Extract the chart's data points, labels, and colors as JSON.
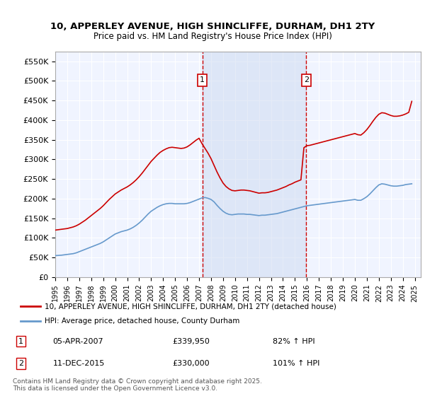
{
  "title_line1": "10, APPERLEY AVENUE, HIGH SHINCLIFFE, DURHAM, DH1 2TY",
  "title_line2": "Price paid vs. HM Land Registry's House Price Index (HPI)",
  "legend_red": "10, APPERLEY AVENUE, HIGH SHINCLIFFE, DURHAM, DH1 2TY (detached house)",
  "legend_blue": "HPI: Average price, detached house, County Durham",
  "annotation1_label": "1",
  "annotation1_date": "05-APR-2007",
  "annotation1_price": "£339,950",
  "annotation1_hpi": "82% ↑ HPI",
  "annotation2_label": "2",
  "annotation2_date": "11-DEC-2015",
  "annotation2_price": "£330,000",
  "annotation2_hpi": "101% ↑ HPI",
  "vline1_x": 2007.27,
  "vline2_x": 2015.95,
  "footer": "Contains HM Land Registry data © Crown copyright and database right 2025.\nThis data is licensed under the Open Government Licence v3.0.",
  "ylim": [
    0,
    575000
  ],
  "xlim_start": 1995.0,
  "xlim_end": 2025.5,
  "bg_color": "#ffffff",
  "plot_bg_color": "#f0f4ff",
  "grid_color": "#ffffff",
  "red_color": "#cc0000",
  "blue_color": "#6699cc",
  "vline_color": "#cc0000",
  "shade_color": "#ccd9f0",
  "hpi_data_x": [
    1995.0,
    1995.25,
    1995.5,
    1995.75,
    1996.0,
    1996.25,
    1996.5,
    1996.75,
    1997.0,
    1997.25,
    1997.5,
    1997.75,
    1998.0,
    1998.25,
    1998.5,
    1998.75,
    1999.0,
    1999.25,
    1999.5,
    1999.75,
    2000.0,
    2000.25,
    2000.5,
    2000.75,
    2001.0,
    2001.25,
    2001.5,
    2001.75,
    2002.0,
    2002.25,
    2002.5,
    2002.75,
    2003.0,
    2003.25,
    2003.5,
    2003.75,
    2004.0,
    2004.25,
    2004.5,
    2004.75,
    2005.0,
    2005.25,
    2005.5,
    2005.75,
    2006.0,
    2006.25,
    2006.5,
    2006.75,
    2007.0,
    2007.25,
    2007.5,
    2007.75,
    2008.0,
    2008.25,
    2008.5,
    2008.75,
    2009.0,
    2009.25,
    2009.5,
    2009.75,
    2010.0,
    2010.25,
    2010.5,
    2010.75,
    2011.0,
    2011.25,
    2011.5,
    2011.75,
    2012.0,
    2012.25,
    2012.5,
    2012.75,
    2013.0,
    2013.25,
    2013.5,
    2013.75,
    2014.0,
    2014.25,
    2014.5,
    2014.75,
    2015.0,
    2015.25,
    2015.5,
    2015.75,
    2016.0,
    2016.25,
    2016.5,
    2016.75,
    2017.0,
    2017.25,
    2017.5,
    2017.75,
    2018.0,
    2018.25,
    2018.5,
    2018.75,
    2019.0,
    2019.25,
    2019.5,
    2019.75,
    2020.0,
    2020.25,
    2020.5,
    2020.75,
    2021.0,
    2021.25,
    2021.5,
    2021.75,
    2022.0,
    2022.25,
    2022.5,
    2022.75,
    2023.0,
    2023.25,
    2023.5,
    2023.75,
    2024.0,
    2024.25,
    2024.5,
    2024.75
  ],
  "hpi_data_y": [
    55000,
    55500,
    56000,
    57000,
    58000,
    59000,
    60000,
    62000,
    65000,
    68000,
    71000,
    74000,
    77000,
    80000,
    83000,
    86000,
    90000,
    95000,
    100000,
    105000,
    110000,
    113000,
    116000,
    118000,
    120000,
    123000,
    127000,
    132000,
    138000,
    145000,
    153000,
    161000,
    168000,
    173000,
    178000,
    182000,
    185000,
    187000,
    188000,
    188000,
    187000,
    187000,
    187000,
    187000,
    188000,
    190000,
    193000,
    196000,
    199000,
    202000,
    203000,
    201000,
    198000,
    192000,
    183000,
    175000,
    168000,
    163000,
    160000,
    159000,
    160000,
    161000,
    161000,
    161000,
    160000,
    160000,
    159000,
    158000,
    157000,
    158000,
    158000,
    159000,
    160000,
    161000,
    162000,
    164000,
    166000,
    168000,
    170000,
    172000,
    174000,
    176000,
    178000,
    180000,
    182000,
    183000,
    184000,
    185000,
    186000,
    187000,
    188000,
    189000,
    190000,
    191000,
    192000,
    193000,
    194000,
    195000,
    196000,
    197000,
    198000,
    196000,
    196000,
    200000,
    205000,
    212000,
    220000,
    228000,
    235000,
    238000,
    237000,
    235000,
    233000,
    232000,
    232000,
    233000,
    234000,
    236000,
    237000,
    238000
  ],
  "red_data_x": [
    1995.0,
    1995.25,
    1995.5,
    1995.75,
    1996.0,
    1996.25,
    1996.5,
    1996.75,
    1997.0,
    1997.25,
    1997.5,
    1997.75,
    1998.0,
    1998.25,
    1998.5,
    1998.75,
    1999.0,
    1999.25,
    1999.5,
    1999.75,
    2000.0,
    2000.25,
    2000.5,
    2000.75,
    2001.0,
    2001.25,
    2001.5,
    2001.75,
    2002.0,
    2002.25,
    2002.5,
    2002.75,
    2003.0,
    2003.25,
    2003.5,
    2003.75,
    2004.0,
    2004.25,
    2004.5,
    2004.75,
    2005.0,
    2005.25,
    2005.5,
    2005.75,
    2006.0,
    2006.25,
    2006.5,
    2006.75,
    2007.0,
    2007.25,
    2007.5,
    2007.75,
    2008.0,
    2008.25,
    2008.5,
    2008.75,
    2009.0,
    2009.25,
    2009.5,
    2009.75,
    2010.0,
    2010.25,
    2010.5,
    2010.75,
    2011.0,
    2011.25,
    2011.5,
    2011.75,
    2012.0,
    2012.25,
    2012.5,
    2012.75,
    2013.0,
    2013.25,
    2013.5,
    2013.75,
    2014.0,
    2014.25,
    2014.5,
    2014.75,
    2015.0,
    2015.25,
    2015.5,
    2015.75,
    2016.0,
    2016.25,
    2016.5,
    2016.75,
    2017.0,
    2017.25,
    2017.5,
    2017.75,
    2018.0,
    2018.25,
    2018.5,
    2018.75,
    2019.0,
    2019.25,
    2019.5,
    2019.75,
    2020.0,
    2020.25,
    2020.5,
    2020.75,
    2021.0,
    2021.25,
    2021.5,
    2021.75,
    2022.0,
    2022.25,
    2022.5,
    2022.75,
    2023.0,
    2023.25,
    2023.5,
    2023.75,
    2024.0,
    2024.25,
    2024.5,
    2024.75
  ],
  "red_data_y": [
    120000,
    121000,
    122000,
    123000,
    124000,
    126000,
    128000,
    131000,
    135000,
    140000,
    145000,
    151000,
    157000,
    163000,
    169000,
    175000,
    182000,
    190000,
    198000,
    205000,
    212000,
    217000,
    222000,
    226000,
    230000,
    235000,
    241000,
    248000,
    256000,
    265000,
    275000,
    285000,
    295000,
    303000,
    311000,
    318000,
    323000,
    327000,
    330000,
    331000,
    330000,
    329000,
    328000,
    329000,
    332000,
    337000,
    343000,
    349000,
    354000,
    340000,
    328000,
    316000,
    302000,
    285000,
    268000,
    253000,
    240000,
    231000,
    225000,
    221000,
    220000,
    221000,
    222000,
    222000,
    221000,
    220000,
    218000,
    216000,
    214000,
    215000,
    215000,
    216000,
    218000,
    220000,
    222000,
    225000,
    228000,
    231000,
    235000,
    238000,
    242000,
    245000,
    248000,
    330000,
    335000,
    336000,
    338000,
    340000,
    342000,
    344000,
    346000,
    348000,
    350000,
    352000,
    354000,
    356000,
    358000,
    360000,
    362000,
    364000,
    366000,
    363000,
    362000,
    368000,
    376000,
    386000,
    397000,
    407000,
    415000,
    419000,
    418000,
    415000,
    412000,
    410000,
    410000,
    411000,
    413000,
    416000,
    420000,
    448000
  ]
}
